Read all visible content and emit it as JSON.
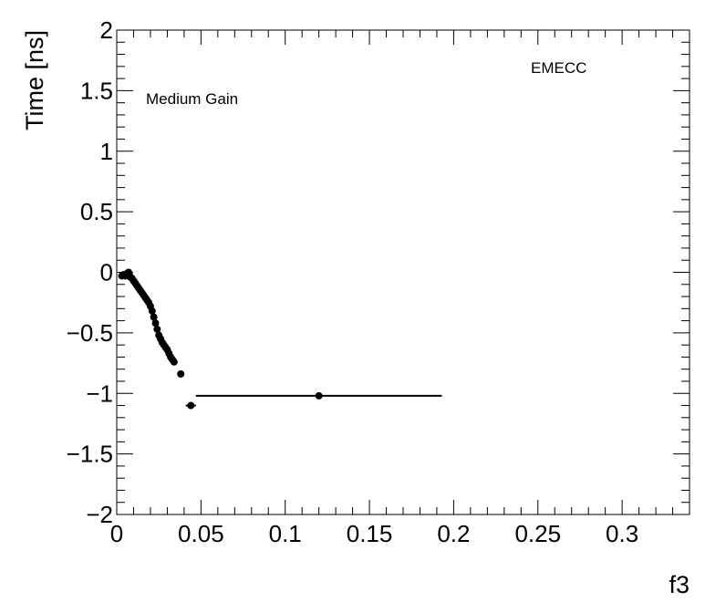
{
  "chart_data": {
    "type": "scatter",
    "xlabel": "f3",
    "ylabel": "Time [ns]",
    "xlim": [
      0,
      0.34
    ],
    "ylim": [
      -2,
      2
    ],
    "x_ticks": [
      0,
      0.05,
      0.1,
      0.15,
      0.2,
      0.25,
      0.3
    ],
    "x_tick_labels": [
      "0",
      "0.05",
      "0.1",
      "0.15",
      "0.2",
      "0.25",
      "0.3"
    ],
    "y_ticks": [
      -2,
      -1.5,
      -1,
      -0.5,
      0,
      0.5,
      1,
      1.5,
      2
    ],
    "y_tick_labels": [
      "−2",
      "−1.5",
      "−1",
      "−0.5",
      "0",
      "0.5",
      "1",
      "1.5",
      "2"
    ],
    "annotations": [
      "Medium Gain",
      "EMECC"
    ],
    "grid": false,
    "series": [
      {
        "points": [
          {
            "x": 0.003,
            "y": -0.03
          },
          {
            "x": 0.004,
            "y": -0.02
          },
          {
            "x": 0.005,
            "y": -0.03
          },
          {
            "x": 0.006,
            "y": -0.01
          },
          {
            "x": 0.007,
            "y": 0.0
          },
          {
            "x": 0.0075,
            "y": -0.02
          },
          {
            "x": 0.008,
            "y": -0.04
          },
          {
            "x": 0.009,
            "y": -0.05
          },
          {
            "x": 0.01,
            "y": -0.07
          },
          {
            "x": 0.011,
            "y": -0.09
          },
          {
            "x": 0.012,
            "y": -0.11
          },
          {
            "x": 0.013,
            "y": -0.13
          },
          {
            "x": 0.014,
            "y": -0.15
          },
          {
            "x": 0.015,
            "y": -0.17
          },
          {
            "x": 0.016,
            "y": -0.19
          },
          {
            "x": 0.017,
            "y": -0.21
          },
          {
            "x": 0.018,
            "y": -0.23
          },
          {
            "x": 0.019,
            "y": -0.25
          },
          {
            "x": 0.02,
            "y": -0.28
          },
          {
            "x": 0.021,
            "y": -0.32
          },
          {
            "x": 0.022,
            "y": -0.37
          },
          {
            "x": 0.023,
            "y": -0.42
          },
          {
            "x": 0.024,
            "y": -0.47
          },
          {
            "x": 0.025,
            "y": -0.52
          },
          {
            "x": 0.026,
            "y": -0.55
          },
          {
            "x": 0.027,
            "y": -0.58
          },
          {
            "x": 0.028,
            "y": -0.6
          },
          {
            "x": 0.029,
            "y": -0.62
          },
          {
            "x": 0.03,
            "y": -0.64
          },
          {
            "x": 0.031,
            "y": -0.67
          },
          {
            "x": 0.032,
            "y": -0.7
          },
          {
            "x": 0.033,
            "y": -0.72
          },
          {
            "x": 0.034,
            "y": -0.74
          },
          {
            "x": 0.038,
            "y": -0.84
          },
          {
            "x": 0.044,
            "y": -1.1,
            "xerr": 0.003
          },
          {
            "x": 0.12,
            "y": -1.02,
            "xerr": 0.073
          }
        ]
      }
    ]
  }
}
